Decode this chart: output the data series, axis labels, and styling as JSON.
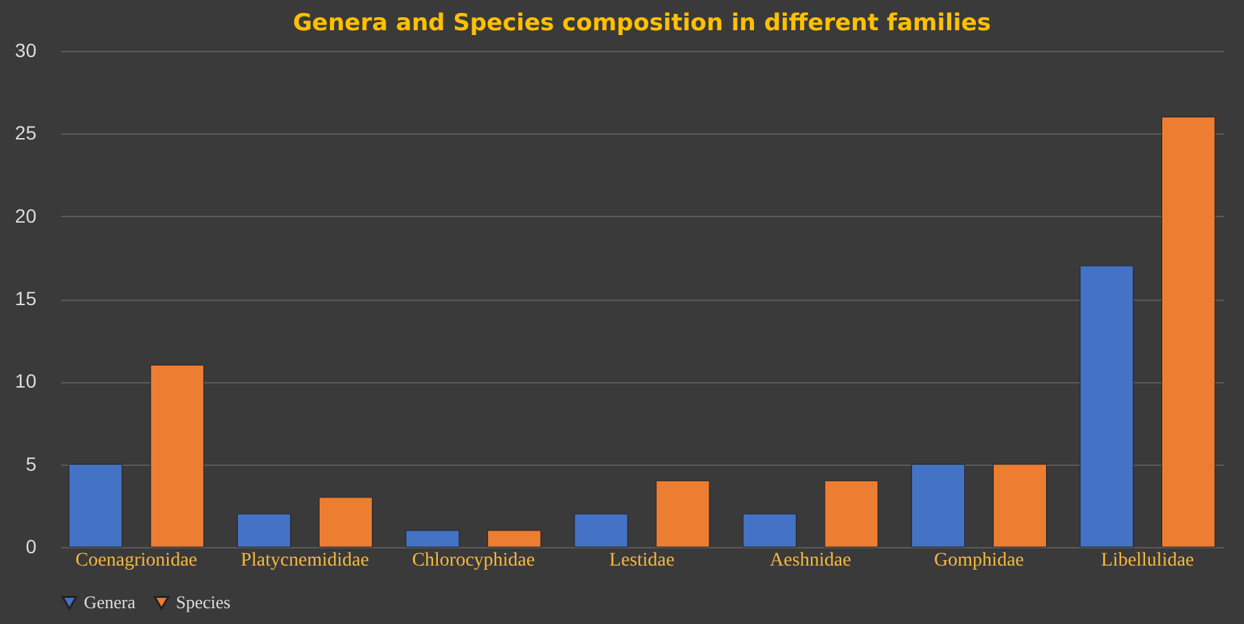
{
  "chart_data": {
    "type": "bar",
    "title": "Genera and Species composition in different families",
    "categories": [
      "Coenagrionidae",
      "Platycnemididae",
      "Chlorocyphidae",
      "Lestidae",
      "Aeshnidae",
      "Gomphidae",
      "Libellulidae"
    ],
    "series": [
      {
        "name": "Genera",
        "color": "#4472c4",
        "values": [
          5,
          2,
          1,
          2,
          2,
          5,
          17
        ]
      },
      {
        "name": "Species",
        "color": "#ed7d31",
        "values": [
          11,
          3,
          1,
          4,
          4,
          5,
          26
        ]
      }
    ],
    "ylim": [
      0,
      30
    ],
    "yticks": [
      0,
      5,
      10,
      15,
      20,
      25,
      30
    ],
    "grid": "y",
    "legend": "bottom"
  }
}
